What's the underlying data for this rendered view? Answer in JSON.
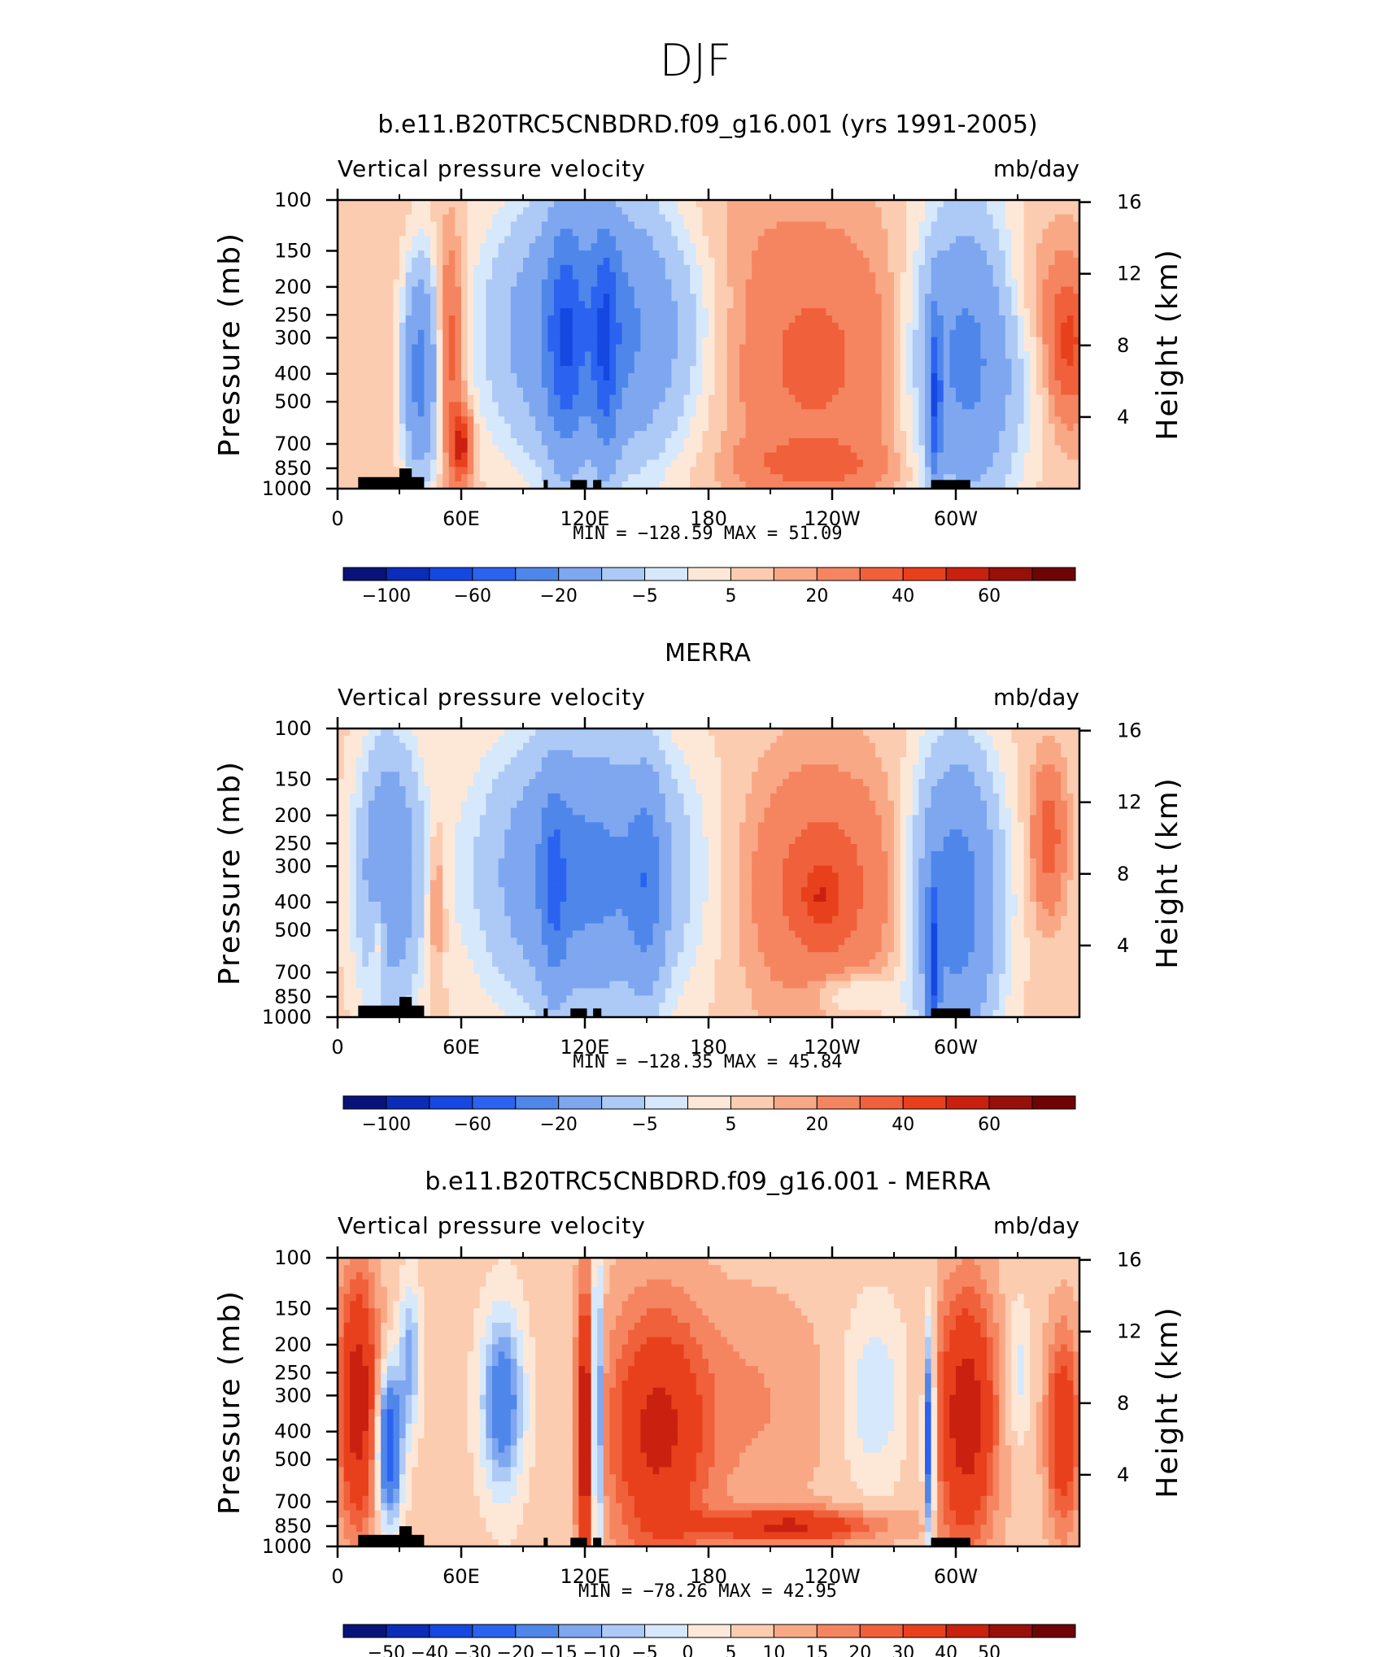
{
  "figure_title": "DJF",
  "colors": {
    "panel1": [
      "#08137a",
      "#0a2cb8",
      "#1448e0",
      "#2b63f0",
      "#4f86ea",
      "#7ea7f0",
      "#adc9f6",
      "#d6e8fb",
      "#fde8d8",
      "#fcccb0",
      "#f9a886",
      "#f58560",
      "#f0603a",
      "#e8401c",
      "#c92010",
      "#98100a",
      "#6e0404"
    ],
    "panel3": [
      "#08137a",
      "#0a2cb8",
      "#1448e0",
      "#2b63f0",
      "#4f86ea",
      "#7ea7f0",
      "#adc9f6",
      "#d6e8fb",
      "#fde8d8",
      "#fcccb0",
      "#f9a886",
      "#f58560",
      "#f0603a",
      "#e8401c",
      "#c92010",
      "#98100a",
      "#6e0404"
    ]
  },
  "chart_data": [
    {
      "type": "heatmap",
      "title": "b.e11.B20TRC5CNBDRD.f09_g16.001 (yrs 1991-2005)",
      "left_label": "Vertical pressure velocity",
      "right_label": "mb/day",
      "ylabel": "Pressure (mb)",
      "y2label": "Height (km)",
      "x_ticks": [
        "0",
        "60E",
        "120E",
        "180",
        "120W",
        "60W"
      ],
      "y_ticks": [
        "100",
        "150",
        "200",
        "250",
        "300",
        "400",
        "500",
        "700",
        "850",
        "1000"
      ],
      "y2_ticks": [
        "16",
        "12",
        "8",
        "4"
      ],
      "stats": "MIN = −128.59   MAX =   51.09",
      "colorbar_labels": [
        "−100",
        "−60",
        "−20",
        "−5",
        "5",
        "20",
        "40",
        "60"
      ],
      "levels": [
        -120,
        -100,
        -80,
        -60,
        -40,
        -20,
        -10,
        -5,
        0,
        5,
        10,
        20,
        30,
        40,
        50,
        60
      ],
      "min": -128.59,
      "max": 51.09
    },
    {
      "type": "heatmap",
      "title": "MERRA",
      "left_label": "Vertical pressure velocity",
      "right_label": "mb/day",
      "ylabel": "Pressure (mb)",
      "y2label": "Height (km)",
      "x_ticks": [
        "0",
        "60E",
        "120E",
        "180",
        "120W",
        "60W"
      ],
      "y_ticks": [
        "100",
        "150",
        "200",
        "250",
        "300",
        "400",
        "500",
        "700",
        "850",
        "1000"
      ],
      "y2_ticks": [
        "16",
        "12",
        "8",
        "4"
      ],
      "stats": "MIN = −128.35   MAX =   45.84",
      "colorbar_labels": [
        "−100",
        "−60",
        "−20",
        "−5",
        "5",
        "20",
        "40",
        "60"
      ],
      "levels": [
        -120,
        -100,
        -80,
        -60,
        -40,
        -20,
        -10,
        -5,
        0,
        5,
        10,
        20,
        30,
        40,
        50,
        60
      ],
      "min": -128.35,
      "max": 45.84
    },
    {
      "type": "heatmap",
      "title": "b.e11.B20TRC5CNBDRD.f09_g16.001 - MERRA",
      "left_label": "Vertical pressure velocity",
      "right_label": "mb/day",
      "ylabel": "Pressure (mb)",
      "y2label": "Height (km)",
      "x_ticks": [
        "0",
        "60E",
        "120E",
        "180",
        "120W",
        "60W"
      ],
      "y_ticks": [
        "100",
        "150",
        "200",
        "250",
        "300",
        "400",
        "500",
        "700",
        "850",
        "1000"
      ],
      "y2_ticks": [
        "16",
        "12",
        "8",
        "4"
      ],
      "stats": "MIN = −78.26   MAX =   42.95",
      "colorbar_labels": [
        "−50",
        "−40",
        "−30",
        "−20",
        "−15",
        "−10",
        "−5",
        "0",
        "5",
        "10",
        "15",
        "20",
        "30",
        "40",
        "50"
      ],
      "levels": [
        -60,
        -50,
        -40,
        -30,
        -20,
        -15,
        -10,
        -5,
        0,
        5,
        10,
        15,
        20,
        30,
        40,
        50
      ],
      "min": -78.26,
      "max": 42.95
    }
  ]
}
